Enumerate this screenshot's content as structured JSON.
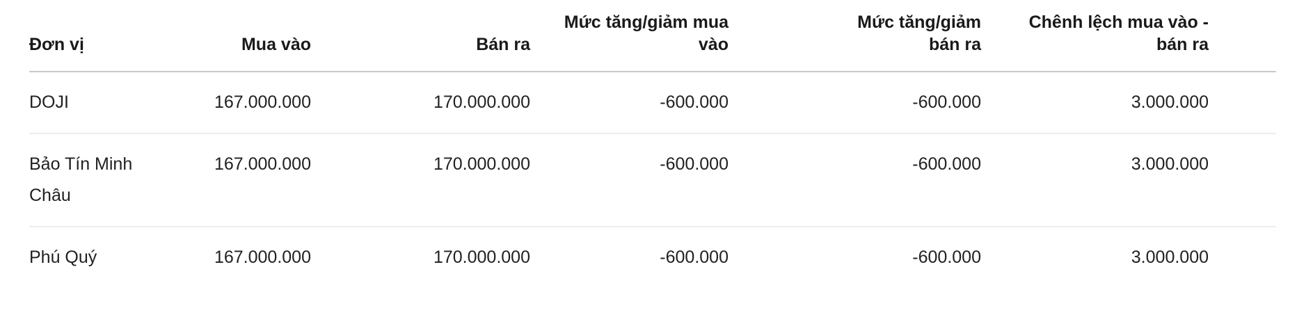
{
  "table": {
    "columns": [
      {
        "id": "unit",
        "label_lines": [
          "Đơn vị"
        ]
      },
      {
        "id": "buy",
        "label_lines": [
          "Mua vào"
        ]
      },
      {
        "id": "sell",
        "label_lines": [
          "Bán ra"
        ]
      },
      {
        "id": "buy_change",
        "label_lines": [
          "Mức tăng/giảm mua",
          "vào"
        ]
      },
      {
        "id": "sell_change",
        "label_lines": [
          "Mức tăng/giảm",
          "bán ra"
        ]
      },
      {
        "id": "spread",
        "label_lines": [
          "Chênh lệch mua vào -",
          "bán ra"
        ]
      }
    ],
    "rows": [
      {
        "unit": "DOJI",
        "buy": "167.000.000",
        "sell": "170.000.000",
        "buy_change": "-600.000",
        "sell_change": "-600.000",
        "spread": "3.000.000"
      },
      {
        "unit": "Bảo Tín Minh Châu",
        "buy": "167.000.000",
        "sell": "170.000.000",
        "buy_change": "-600.000",
        "sell_change": "-600.000",
        "spread": "3.000.000"
      },
      {
        "unit": "Phú Quý",
        "buy": "167.000.000",
        "sell": "170.000.000",
        "buy_change": "-600.000",
        "sell_change": "-600.000",
        "spread": "3.000.000"
      }
    ]
  },
  "colors": {
    "text": "#212121",
    "header_text": "#1a1a1a",
    "header_rule": "#c9c9c9",
    "row_rule": "#ededed",
    "background": "#ffffff"
  }
}
